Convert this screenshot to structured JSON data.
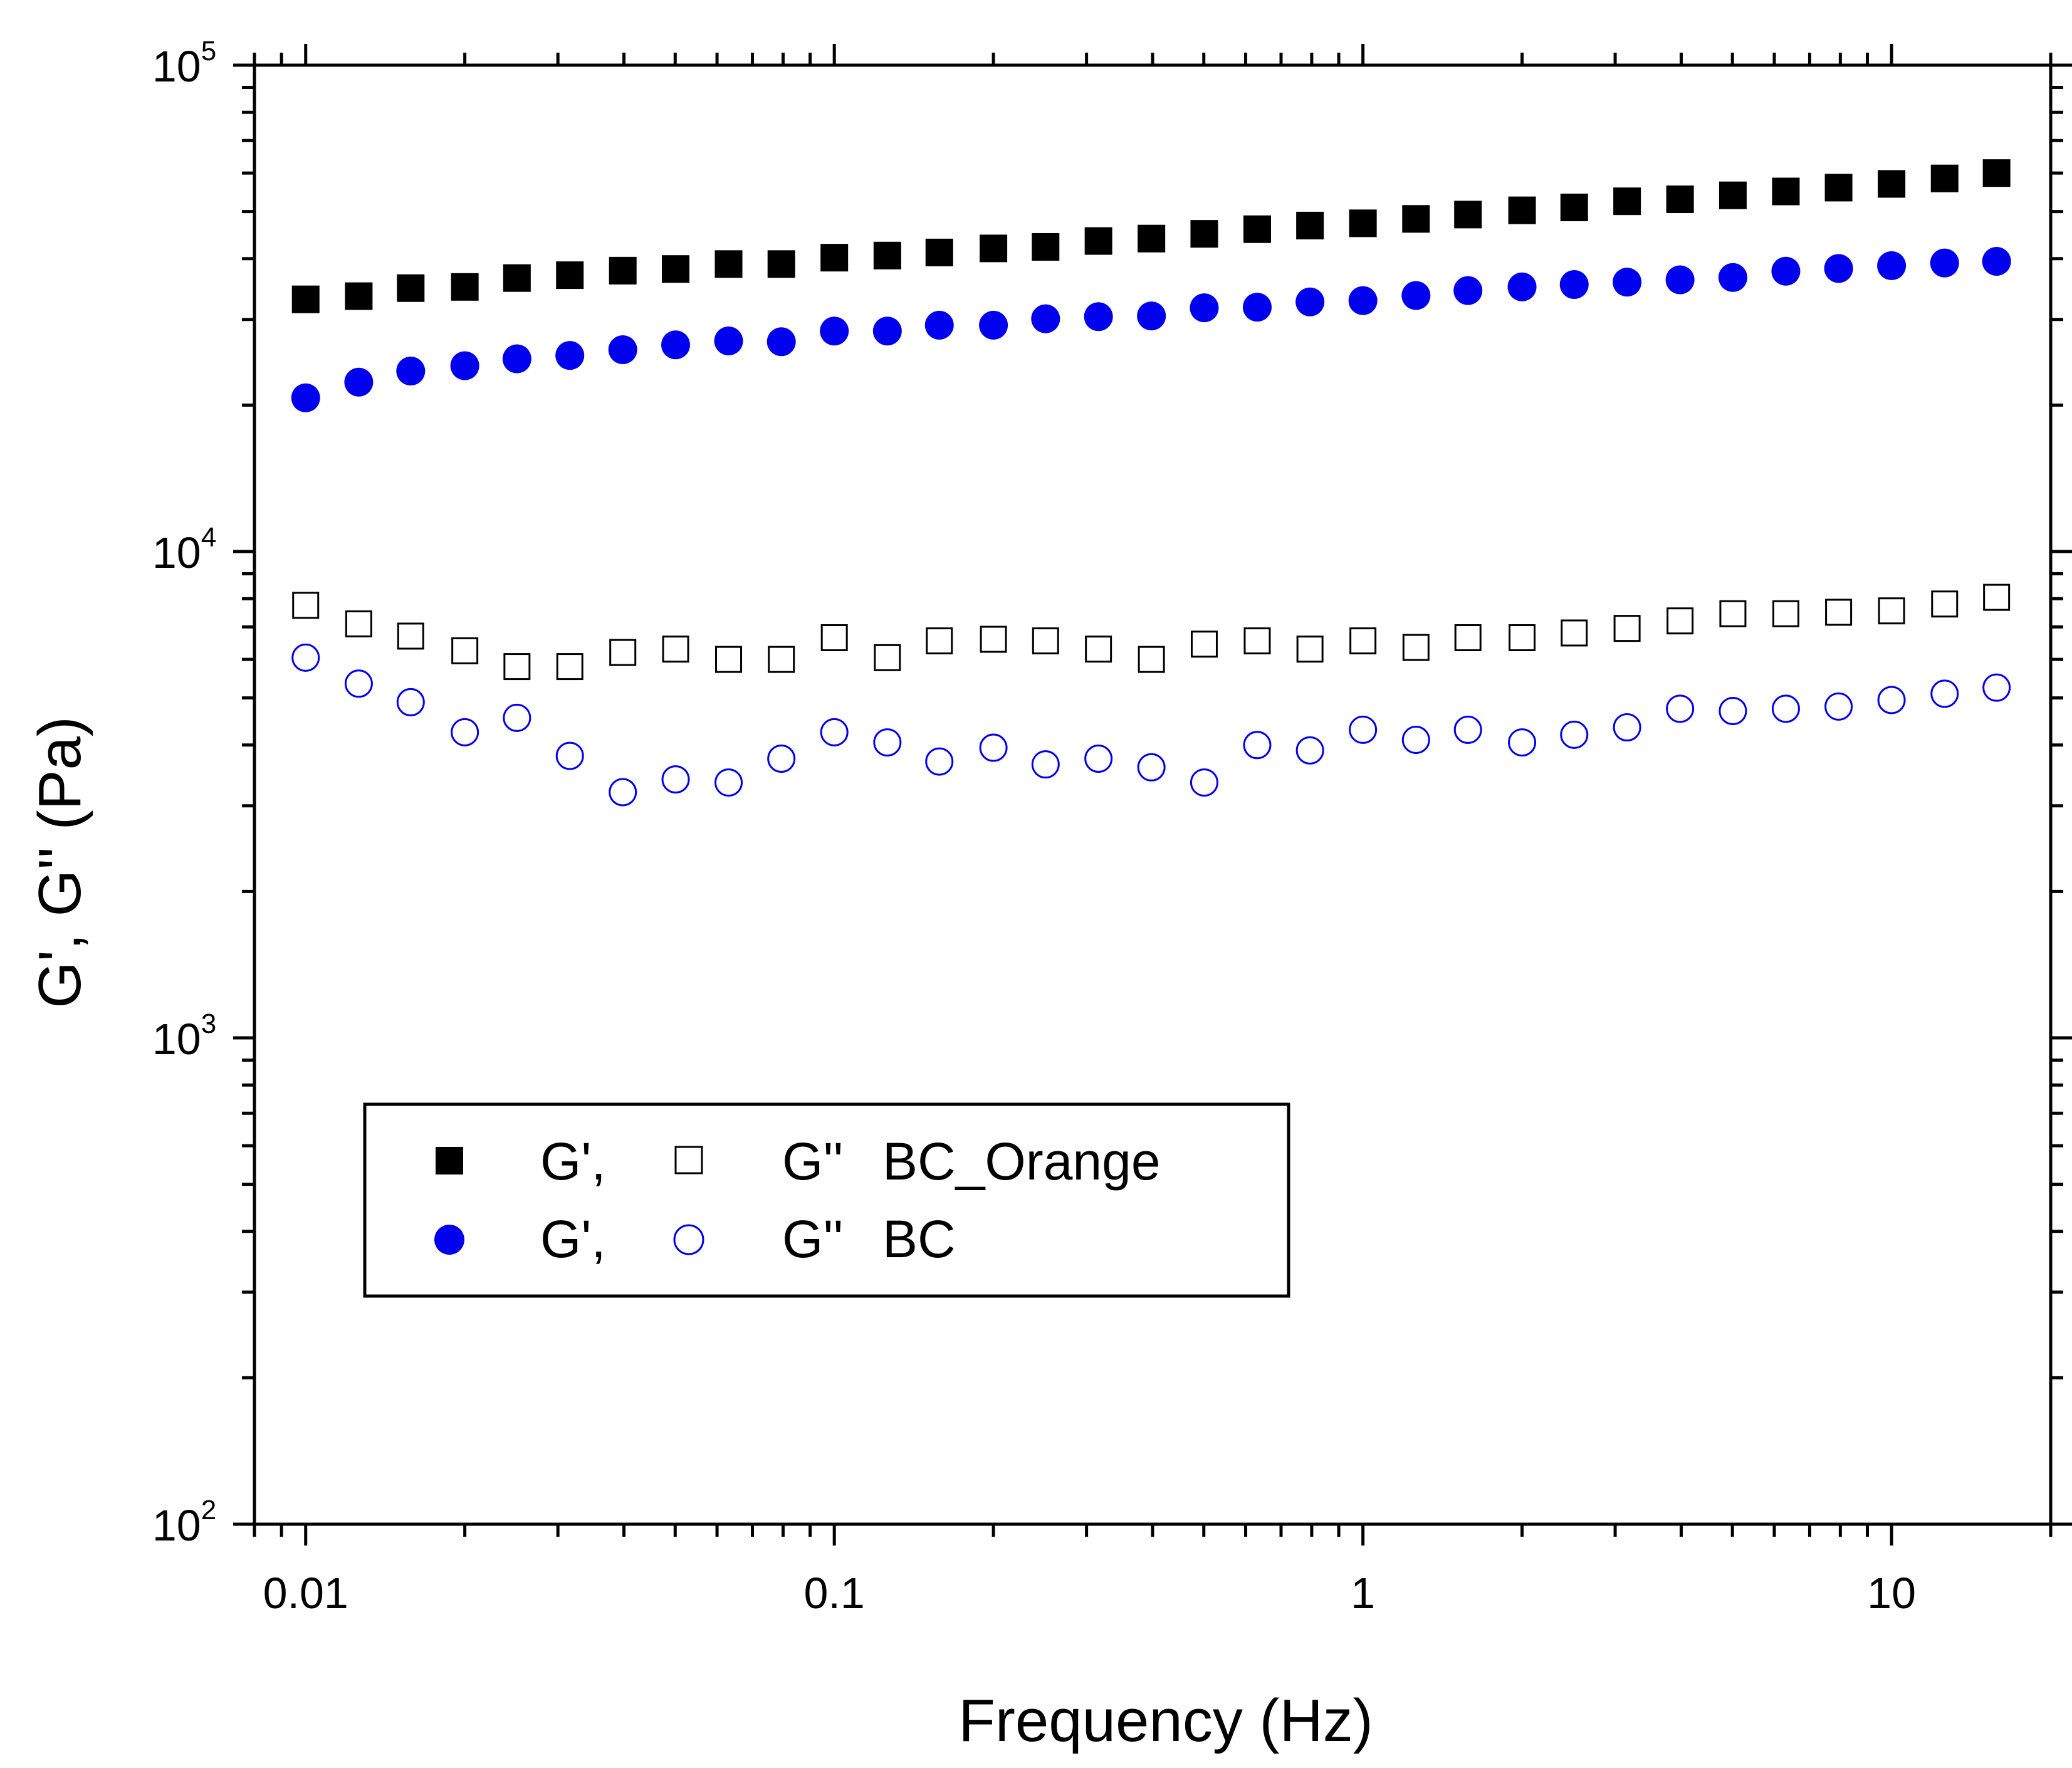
{
  "chart_data": {
    "type": "scatter",
    "xlabel": "Frequency (Hz)",
    "ylabel": "G', G'' (Pa)",
    "x_scale": "log",
    "y_scale": "log",
    "xlim": [
      0.008,
      20
    ],
    "ylim": [
      100,
      100000
    ],
    "x_ticks": [
      {
        "value": 0.01,
        "label": "0.01"
      },
      {
        "value": 0.1,
        "label": "0.1"
      },
      {
        "value": 1,
        "label": "1"
      },
      {
        "value": 10,
        "label": "10"
      }
    ],
    "y_ticks": [
      {
        "value": 100,
        "base": "10",
        "exp": "2"
      },
      {
        "value": 1000,
        "base": "10",
        "exp": "3"
      },
      {
        "value": 10000,
        "base": "10",
        "exp": "4"
      },
      {
        "value": 100000,
        "base": "10",
        "exp": "5"
      }
    ],
    "grid": false,
    "legend_position": "lower-left",
    "legend": {
      "rows": [
        {
          "label1": "G',",
          "label2": "G''",
          "label3": "BC_Orange"
        },
        {
          "label1": "G',",
          "label2": "G''",
          "label3": "BC"
        }
      ]
    },
    "x": [
      0.01,
      0.0126,
      0.0158,
      0.02,
      0.0251,
      0.0316,
      0.0398,
      0.0501,
      0.0631,
      0.0794,
      0.1,
      0.126,
      0.158,
      0.2,
      0.251,
      0.316,
      0.398,
      0.501,
      0.631,
      0.794,
      1,
      1.26,
      1.58,
      2,
      2.51,
      3.16,
      3.98,
      5.01,
      6.31,
      7.94,
      10,
      12.6,
      15.8
    ],
    "series": [
      {
        "marker": "square",
        "filled": true,
        "color": "#000000",
        "values": [
          33000,
          33500,
          34800,
          35000,
          36500,
          37000,
          37800,
          38100,
          39000,
          39000,
          40200,
          40600,
          41200,
          42000,
          42300,
          43500,
          44000,
          45000,
          46000,
          46800,
          47300,
          48300,
          49300,
          50300,
          51000,
          52500,
          53000,
          54000,
          55000,
          56000,
          57000,
          58500,
          60000
        ]
      },
      {
        "marker": "square",
        "filled": false,
        "color": "#000000",
        "values": [
          7750,
          7100,
          6700,
          6250,
          5800,
          5800,
          6200,
          6300,
          6000,
          6000,
          6650,
          6050,
          6550,
          6600,
          6550,
          6300,
          6000,
          6450,
          6550,
          6300,
          6550,
          6350,
          6650,
          6650,
          6800,
          6950,
          7200,
          7450,
          7450,
          7500,
          7550,
          7800,
          8050
        ]
      },
      {
        "marker": "circle",
        "filled": true,
        "color": "#0000ee",
        "values": [
          20700,
          22300,
          23500,
          24100,
          24900,
          25300,
          26000,
          26600,
          27100,
          27000,
          28400,
          28400,
          29200,
          29200,
          30100,
          30400,
          30500,
          31700,
          31800,
          32600,
          32800,
          33600,
          34400,
          35000,
          35400,
          35800,
          36200,
          36600,
          37700,
          38200,
          38700,
          39200,
          39500
        ]
      },
      {
        "marker": "circle",
        "filled": false,
        "color": "#0000ee",
        "values": [
          6050,
          5350,
          4900,
          4250,
          4550,
          3800,
          3200,
          3400,
          3350,
          3750,
          4250,
          4050,
          3700,
          3950,
          3650,
          3750,
          3600,
          3350,
          4000,
          3900,
          4300,
          4100,
          4300,
          4050,
          4200,
          4350,
          4750,
          4700,
          4750,
          4800,
          4950,
          5100,
          5250
        ]
      }
    ]
  }
}
